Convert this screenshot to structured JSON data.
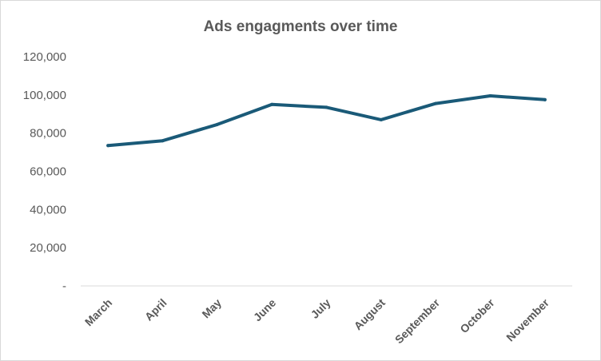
{
  "chart_data": {
    "type": "line",
    "title": "Ads engagments over time",
    "xlabel": "",
    "ylabel": "",
    "categories": [
      "March",
      "April",
      "May",
      "June",
      "July",
      "August",
      "September",
      "October",
      "November"
    ],
    "series": [
      {
        "values": [
          73500,
          76000,
          84500,
          95000,
          93500,
          87000,
          95500,
          99500,
          97500
        ],
        "color": "#1a5a78"
      }
    ],
    "ylim": [
      0,
      120000
    ],
    "y_ticks": [
      0,
      20000,
      40000,
      60000,
      80000,
      100000,
      120000
    ],
    "y_tick_labels": [
      "-",
      "20,000",
      "40,000",
      "60,000",
      "80,000",
      "100,000",
      "120,000"
    ],
    "grid": false,
    "legend": "none"
  }
}
